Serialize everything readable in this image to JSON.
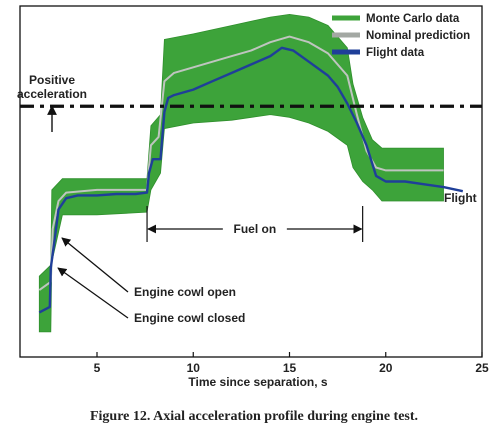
{
  "chart_data": {
    "type": "line",
    "title": "",
    "caption": "Figure 12. Axial acceleration profile during engine test.",
    "xlabel": "Time since separation, s",
    "ylabel": "",
    "xlim": [
      1.0,
      25.0
    ],
    "ylim": [
      -9.0,
      3.6
    ],
    "xticks": [
      5,
      10,
      15,
      20,
      25
    ],
    "grid": false,
    "legend_position": "top-right",
    "threshold_line_y": 0,
    "series": [
      {
        "name": "Monte Carlo data",
        "kind": "band",
        "color": "#3da33a",
        "x": [
          2.0,
          2.6,
          2.65,
          3.2,
          5.0,
          7.6,
          7.8,
          8.3,
          8.5,
          10.0,
          12.0,
          14.0,
          15.0,
          16.0,
          17.0,
          18.0,
          18.3,
          18.8,
          19.3,
          19.8,
          21.0,
          23.0
        ],
        "upper": [
          -6.1,
          -5.7,
          -3.0,
          -2.6,
          -2.6,
          -2.6,
          -0.7,
          -0.3,
          2.4,
          2.6,
          2.9,
          3.2,
          3.3,
          3.2,
          2.9,
          2.1,
          0.8,
          -0.4,
          -1.2,
          -1.5,
          -1.5,
          -1.5
        ],
        "lower": [
          -8.1,
          -8.1,
          -5.6,
          -3.9,
          -3.9,
          -3.8,
          -3.0,
          -2.4,
          -0.8,
          -0.6,
          -0.5,
          -0.3,
          -0.4,
          -0.6,
          -0.9,
          -1.4,
          -2.2,
          -2.7,
          -3.0,
          -3.4,
          -3.4,
          -3.4
        ]
      },
      {
        "name": "Nominal prediction",
        "kind": "line",
        "color": "#bfc5bf",
        "x": [
          2.0,
          2.6,
          2.7,
          3.0,
          3.4,
          5.0,
          7.6,
          7.8,
          8.2,
          8.5,
          9.0,
          10.0,
          12.0,
          13.0,
          14.0,
          15.0,
          16.0,
          17.0,
          18.0,
          18.5,
          19.0,
          19.5,
          20.0,
          23.0
        ],
        "y": [
          -6.6,
          -6.3,
          -4.4,
          -3.4,
          -3.1,
          -3.0,
          -3.0,
          -1.4,
          -1.1,
          0.9,
          1.2,
          1.4,
          1.8,
          2.0,
          2.3,
          2.5,
          2.3,
          1.9,
          1.1,
          -0.3,
          -1.6,
          -2.2,
          -2.3,
          -2.3
        ]
      },
      {
        "name": "Flight data",
        "kind": "line",
        "color": "#1f3f99",
        "x": [
          2.0,
          2.55,
          2.6,
          2.8,
          3.0,
          3.4,
          4.0,
          5.0,
          6.0,
          7.0,
          7.6,
          7.7,
          7.9,
          8.3,
          8.5,
          8.7,
          9.0,
          10.0,
          11.0,
          12.0,
          13.0,
          14.0,
          14.6,
          15.2,
          16.0,
          17.0,
          17.5,
          18.0,
          18.5,
          19.0,
          19.5,
          20.0,
          21.0,
          22.0,
          23.0,
          24.0
        ],
        "y": [
          -7.4,
          -7.2,
          -5.8,
          -4.8,
          -3.7,
          -3.3,
          -3.2,
          -3.2,
          -3.15,
          -3.15,
          -3.1,
          -2.4,
          -1.9,
          -1.9,
          -0.2,
          0.3,
          0.4,
          0.6,
          0.9,
          1.2,
          1.5,
          1.8,
          2.1,
          2.0,
          1.6,
          1.1,
          0.7,
          0.1,
          -0.6,
          -1.4,
          -2.5,
          -2.7,
          -2.7,
          -2.8,
          -2.9,
          -3.05
        ]
      }
    ],
    "annotations": {
      "positive_label_1": "Positive",
      "positive_label_2": "acceleration",
      "fuel_on": "Fuel on",
      "fuel_on_range": [
        7.6,
        18.8
      ],
      "flight": "Flight",
      "cowl_open": "Engine cowl open",
      "cowl_closed": "Engine cowl closed"
    }
  }
}
